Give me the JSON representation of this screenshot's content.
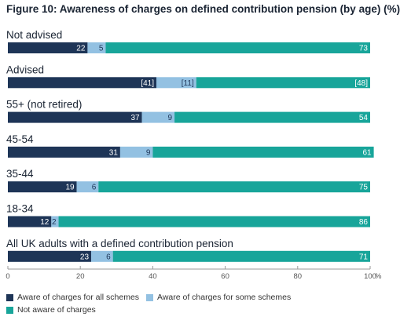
{
  "chart_data": {
    "type": "bar",
    "orientation": "horizontal",
    "stacked": true,
    "title": "Figure 10: Awareness of charges on defined contribution pension (by age) (%)",
    "categories": [
      "Not advised",
      "Advised",
      "55+ (not retired)",
      "45-54",
      "35-44",
      "18-34",
      "All UK adults with a defined contribution pension"
    ],
    "series": [
      {
        "name": "Aware of charges for all schemes",
        "color": "#1e3557",
        "values": [
          22,
          41,
          37,
          31,
          19,
          12,
          23
        ],
        "labels": [
          "22",
          "[41]",
          "37",
          "31",
          "19",
          "12",
          "23"
        ]
      },
      {
        "name": "Aware of charges for some schemes",
        "color": "#93c1e2",
        "values": [
          5,
          11,
          9,
          9,
          6,
          2,
          6
        ],
        "labels": [
          "5",
          "[11]",
          "9",
          "9",
          "6",
          "2",
          "6"
        ]
      },
      {
        "name": "Not aware of charges",
        "color": "#18a59a",
        "values": [
          73,
          48,
          54,
          61,
          75,
          86,
          71
        ],
        "labels": [
          "73",
          "[48]",
          "54",
          "61",
          "75",
          "86",
          "71"
        ]
      }
    ],
    "xlim": [
      0,
      100
    ],
    "xticks": [
      "0",
      "20",
      "40",
      "60",
      "80",
      "100"
    ],
    "xunit": "%",
    "legend_position": "bottom-left",
    "grid": false
  }
}
